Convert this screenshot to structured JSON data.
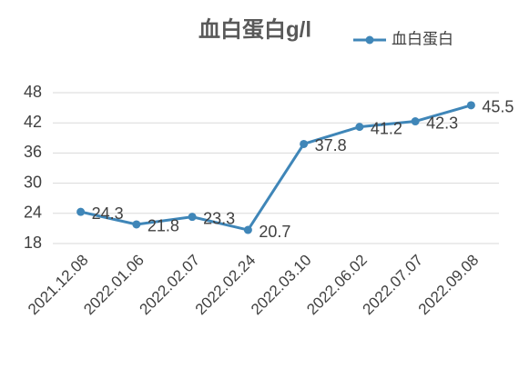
{
  "chart_data": {
    "type": "line",
    "title": "血白蛋白g/l",
    "categories": [
      "2021.12.08",
      "2022.01.06",
      "2022.02.07",
      "2022.02.24",
      "2022.03.10",
      "2022.06.02",
      "2022.07.07",
      "2022.09.08"
    ],
    "series": [
      {
        "name": "血白蛋白",
        "color": "#3f86b8",
        "values": [
          24.3,
          21.8,
          23.3,
          20.7,
          37.8,
          41.2,
          42.3,
          45.5
        ]
      }
    ],
    "ylim": [
      18,
      48
    ],
    "yticks": [
      18,
      24,
      30,
      36,
      42,
      48
    ],
    "grid": true,
    "legend": "top-right",
    "data_labels": true
  }
}
